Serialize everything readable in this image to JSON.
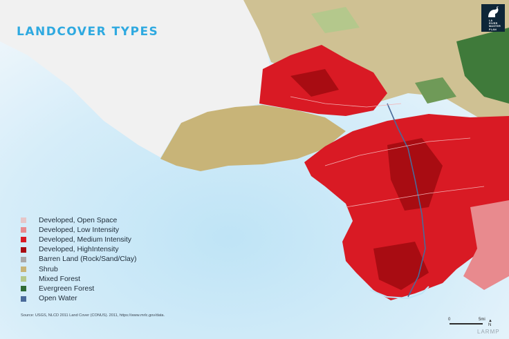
{
  "title": "LANDCOVER TYPES",
  "legend": [
    {
      "label": "Developed, Open Space",
      "color": "#e6c6c8"
    },
    {
      "label": "Developed, Low Intensity",
      "color": "#e88a8e"
    },
    {
      "label": "Developed, Medium Intensity",
      "color": "#d91a24"
    },
    {
      "label": "Developed, HighIntensity",
      "color": "#a80c12"
    },
    {
      "label": "Barren Land (Rock/Sand/Clay)",
      "color": "#a9a9a9"
    },
    {
      "label": "Shrub",
      "color": "#c8b478"
    },
    {
      "label": "Mixed Forest",
      "color": "#b4c88c"
    },
    {
      "label": "Evergreen Forest",
      "color": "#2e6b35"
    },
    {
      "label": "Open Water",
      "color": "#4a6a9a"
    }
  ],
  "source": "Source: USGS, NLCD 2011 Land Cover (CONUS). 2011, https://www.mrlc.gov/data.",
  "logo": {
    "lines": [
      "LA",
      "RIVER",
      "MASTER",
      "PLAN"
    ]
  },
  "scale": {
    "start": "0",
    "end": "5mi",
    "north": "N"
  },
  "watermark": "LARMP"
}
